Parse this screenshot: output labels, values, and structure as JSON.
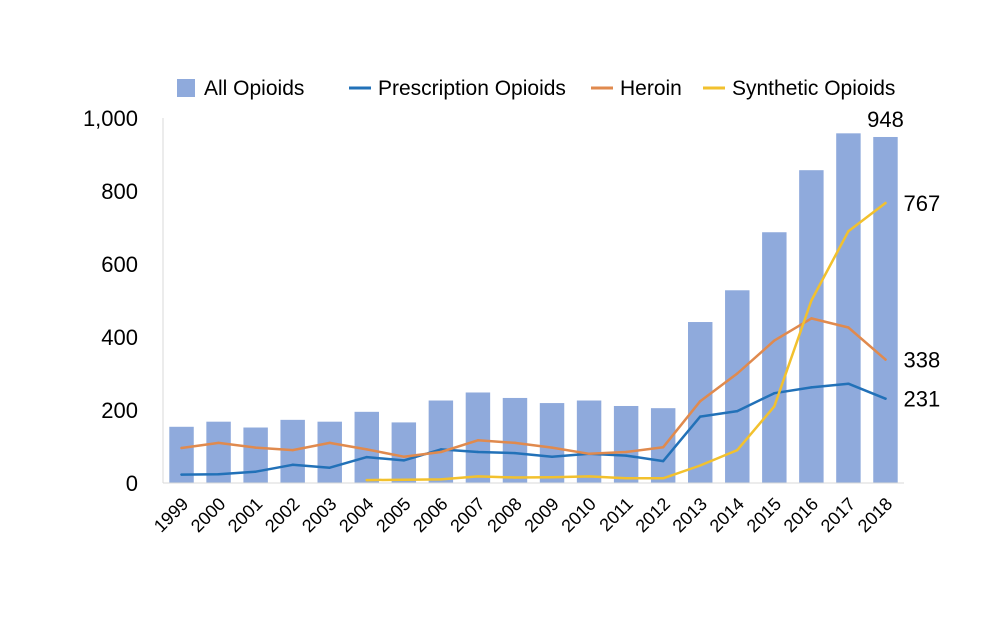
{
  "chart_data": {
    "type": "bar",
    "categories": [
      "1999",
      "2000",
      "2001",
      "2002",
      "2003",
      "2004",
      "2005",
      "2006",
      "2007",
      "2008",
      "2009",
      "2010",
      "2011",
      "2012",
      "2013",
      "2014",
      "2015",
      "2016",
      "2017",
      "2018"
    ],
    "ylim": [
      0,
      1000
    ],
    "yticks": [
      0,
      200,
      400,
      600,
      800,
      1000
    ],
    "ytick_labels": [
      "0",
      "200",
      "400",
      "600",
      "800",
      "1,000"
    ],
    "grid": false,
    "legend_position": "top",
    "series": [
      {
        "name": "All Opioids",
        "kind": "bar",
        "color": "#8faadc",
        "values": [
          154,
          168,
          152,
          173,
          168,
          195,
          166,
          226,
          248,
          233,
          219,
          226,
          211,
          205,
          441,
          528,
          687,
          857,
          958,
          948
        ],
        "end_label": "948"
      },
      {
        "name": "Prescription Opioids",
        "kind": "line",
        "color": "#2271b8",
        "values": [
          23,
          24,
          31,
          50,
          42,
          71,
          62,
          92,
          85,
          82,
          72,
          80,
          75,
          60,
          182,
          197,
          246,
          262,
          272,
          231
        ],
        "end_label": "231"
      },
      {
        "name": "Heroin",
        "kind": "line",
        "color": "#e08a4e",
        "values": [
          96,
          110,
          97,
          90,
          110,
          92,
          72,
          85,
          117,
          110,
          97,
          80,
          85,
          98,
          224,
          300,
          390,
          451,
          426,
          338
        ],
        "end_label": "338"
      },
      {
        "name": "Synthetic Opioids",
        "kind": "line",
        "color": "#f2c12e",
        "values": [
          null,
          null,
          null,
          null,
          null,
          8,
          9,
          10,
          18,
          15,
          16,
          18,
          13,
          13,
          48,
          90,
          210,
          500,
          690,
          767
        ],
        "end_label": "767"
      }
    ]
  }
}
